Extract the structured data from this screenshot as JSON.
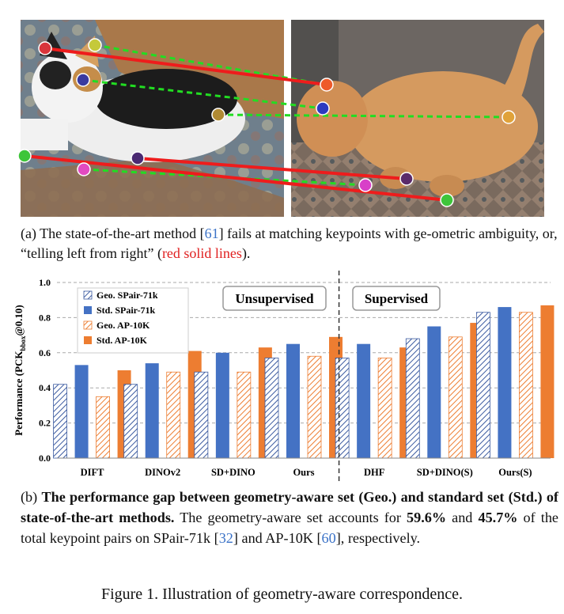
{
  "caption_a": {
    "prefix": "(a) The state-of-the-art method [",
    "cite": "61",
    "middle": "] fails at matching keypoints with ge-ometric ambiguity, or, “telling left from right” (",
    "red_text": "red solid lines",
    "suffix": ")."
  },
  "caption_b": {
    "prefix": "(b) ",
    "bold": "The performance gap between geometry-aware set (Geo.) and standard set (Std.) of state-of-the-art methods.",
    "t1": " The geometry-aware set accounts for ",
    "pct1": "59.6%",
    "t2": " and ",
    "pct2": "45.7%",
    "t3": " of the total keypoint pairs on SPair-71k [",
    "cite1": "32",
    "t4": "] and AP-10K [",
    "cite2": "60",
    "t5": "], respectively."
  },
  "figure_caption": "Figure 1. Illustration of geometry-aware correspondence.",
  "colors": {
    "geo_spair": "#3b5aa0",
    "std_spair": "#4472c4",
    "geo_ap": "#ed7d31",
    "std_ap": "#ed7d31",
    "match_wrong": "#ee1c1c",
    "match_right": "#22dd22"
  },
  "chart_data": {
    "type": "bar",
    "ylabel": "Performance (PCK",
    "ylabel_sub": "bbox",
    "ylabel_suffix": "@0.10)",
    "ylim": [
      0,
      1.0
    ],
    "yticks": [
      "0.0",
      "0.2",
      "0.4",
      "0.6",
      "0.8",
      "1.0"
    ],
    "categories": [
      "DIFT",
      "DINOv2",
      "SD+DINO",
      "Ours",
      "DHF",
      "SD+DINO(S)",
      "Ours(S)"
    ],
    "groups": [
      "Unsupervised",
      "Supervised"
    ],
    "series": [
      {
        "name": "Geo. SPair-71k",
        "values": [
          0.42,
          0.42,
          0.49,
          0.57,
          0.57,
          0.68,
          0.83
        ]
      },
      {
        "name": "Std. SPair-71k",
        "values": [
          0.53,
          0.54,
          0.6,
          0.65,
          0.65,
          0.75,
          0.86
        ]
      },
      {
        "name": "Geo. AP-10K",
        "values": [
          0.35,
          0.49,
          0.49,
          0.58,
          0.57,
          0.69,
          0.83
        ]
      },
      {
        "name": "Std. AP-10K",
        "values": [
          0.5,
          0.61,
          0.63,
          0.69,
          0.63,
          0.77,
          0.87
        ]
      }
    ],
    "grid": true,
    "legend_position": "top-left"
  }
}
